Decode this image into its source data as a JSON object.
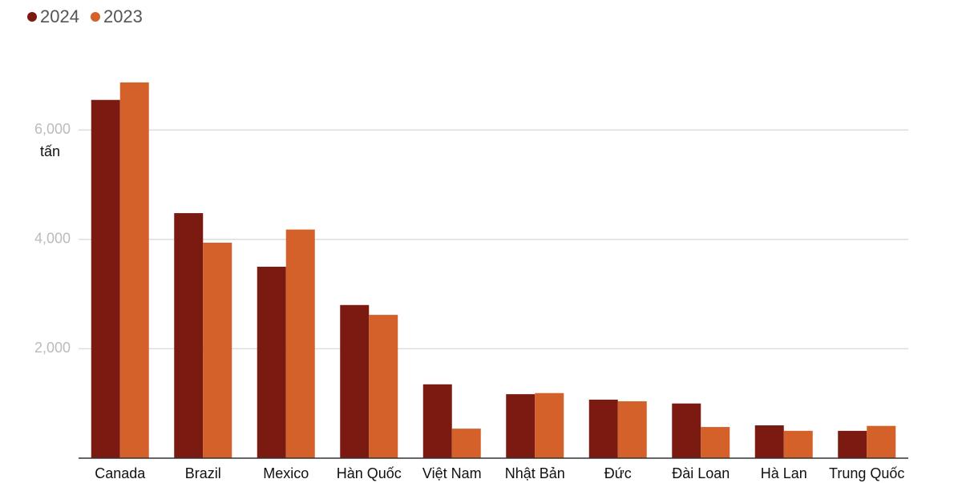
{
  "chart_data": {
    "type": "bar",
    "unit_label": "tấn",
    "categories": [
      "Canada",
      "Brazil",
      "Mexico",
      "Hàn Quốc",
      "Việt Nam",
      "Nhật Bản",
      "Đức",
      "Đài Loan",
      "Hà Lan",
      "Trung Quốc"
    ],
    "series": [
      {
        "name": "2024",
        "color": "#7b1a10",
        "values": [
          6550,
          4480,
          3500,
          2800,
          1350,
          1170,
          1070,
          1000,
          600,
          500
        ]
      },
      {
        "name": "2023",
        "color": "#d4602a",
        "values": [
          6870,
          3940,
          4180,
          2620,
          540,
          1190,
          1040,
          570,
          500,
          590
        ]
      }
    ],
    "ylim": [
      0,
      7000
    ],
    "yticks": [
      {
        "value": 2000,
        "label": "2,000"
      },
      {
        "value": 4000,
        "label": "4,000"
      },
      {
        "value": 6000,
        "label": "6,000"
      }
    ],
    "grid": true,
    "legend": "top-left"
  }
}
